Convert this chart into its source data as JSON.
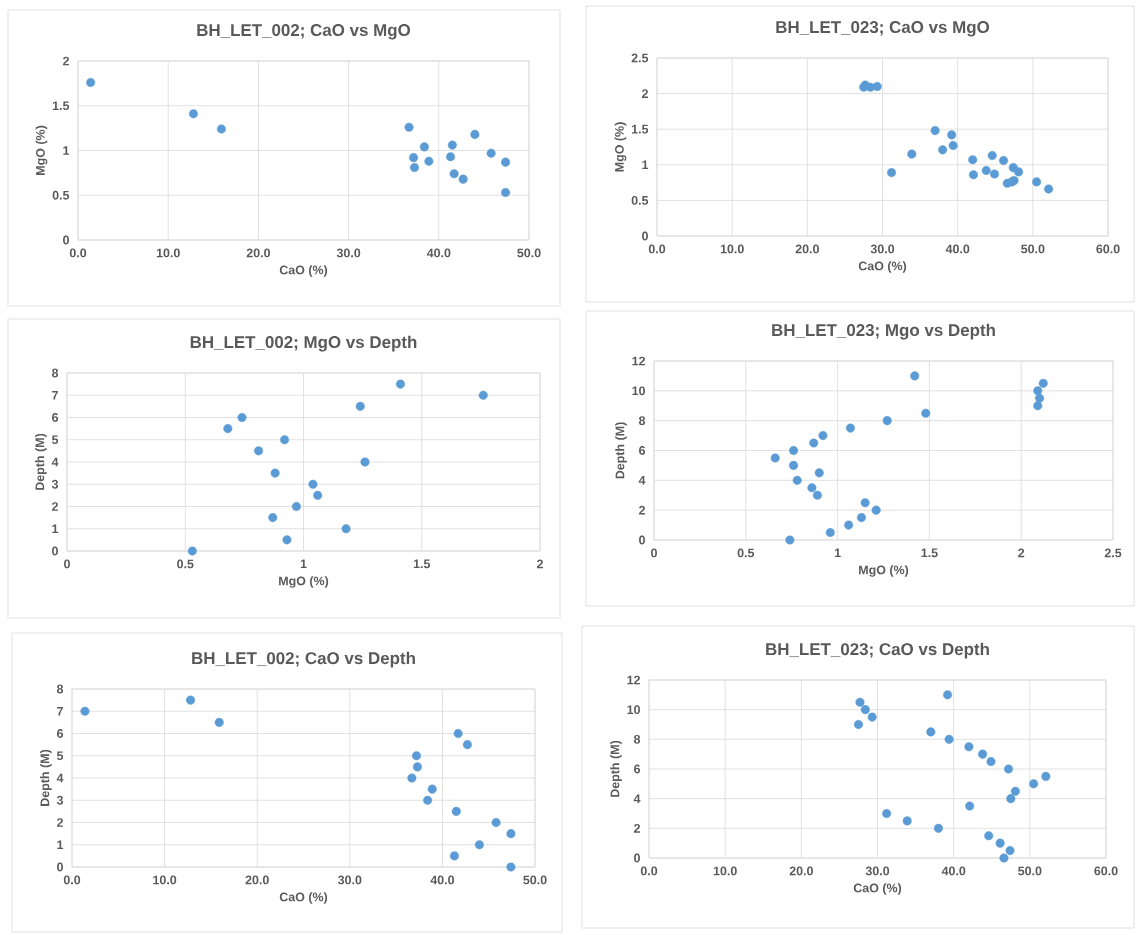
{
  "chart_data": [
    {
      "type": "scatter",
      "title": "BH_LET_002; CaO vs MgO",
      "xlabel": "CaO (%)",
      "ylabel": "MgO (%)",
      "color": "#5b9bd5",
      "marker": "circle",
      "grid": true,
      "x": [
        47.4,
        41.3,
        44.0,
        47.4,
        45.8,
        41.5,
        38.4,
        38.9,
        36.7,
        37.3,
        37.2,
        42.7,
        41.7,
        15.9,
        1.4,
        12.8
      ],
      "values": [
        0.53,
        0.93,
        1.18,
        0.87,
        0.97,
        1.06,
        1.04,
        0.88,
        1.26,
        0.81,
        0.92,
        0.68,
        0.74,
        1.24,
        1.76,
        1.41
      ],
      "xlim": [
        0,
        50
      ],
      "ylim": [
        0,
        2
      ],
      "xticks": [
        {
          "value": 0,
          "label": "0.0"
        },
        {
          "value": 10,
          "label": "10.0"
        },
        {
          "value": 20,
          "label": "20.0"
        },
        {
          "value": 30,
          "label": "30.0"
        },
        {
          "value": 40,
          "label": "40.0"
        },
        {
          "value": 50,
          "label": "50.0"
        }
      ],
      "yticks": [
        0,
        0.5,
        1,
        1.5,
        2
      ]
    },
    {
      "type": "scatter",
      "title": "BH_LET_023; CaO vs MgO",
      "xlabel": "CaO (%)",
      "ylabel": "MgO (%)",
      "color": "#5b9bd5",
      "marker": "circle",
      "grid": true,
      "x": [
        46.6,
        47.4,
        46.1,
        44.6,
        38.0,
        33.9,
        31.2,
        42.1,
        47.5,
        48.1,
        50.5,
        52.1,
        47.2,
        44.9,
        43.8,
        42.0,
        39.4,
        37.0,
        27.5,
        29.3,
        28.4,
        27.7,
        39.2
      ],
      "values": [
        0.74,
        0.96,
        1.06,
        1.13,
        1.21,
        1.15,
        0.89,
        0.86,
        0.78,
        0.9,
        0.76,
        0.66,
        0.76,
        0.87,
        0.92,
        1.07,
        1.27,
        1.48,
        2.09,
        2.1,
        2.09,
        2.12,
        1.42
      ],
      "xlim": [
        0,
        60
      ],
      "ylim": [
        0,
        2.5
      ],
      "xticks": [
        {
          "value": 0,
          "label": "0.0"
        },
        {
          "value": 10,
          "label": "10.0"
        },
        {
          "value": 20,
          "label": "20.0"
        },
        {
          "value": 30,
          "label": "30.0"
        },
        {
          "value": 40,
          "label": "40.0"
        },
        {
          "value": 50,
          "label": "50.0"
        },
        {
          "value": 60,
          "label": "60.0"
        }
      ],
      "yticks": [
        0,
        0.5,
        1,
        1.5,
        2,
        2.5
      ]
    },
    {
      "type": "scatter",
      "title": "BH_LET_002; MgO vs Depth",
      "xlabel": "MgO (%)",
      "ylabel": "Depth (M)",
      "color": "#5b9bd5",
      "marker": "circle",
      "grid": true,
      "x": [
        0.53,
        0.93,
        1.18,
        0.87,
        0.97,
        1.06,
        1.04,
        0.88,
        1.26,
        0.81,
        0.92,
        0.68,
        0.74,
        1.24,
        1.76,
        1.41
      ],
      "values": [
        0,
        0.5,
        1,
        1.5,
        2,
        2.5,
        3,
        3.5,
        4,
        4.5,
        5,
        5.5,
        6,
        6.5,
        7,
        7.5
      ],
      "xlim": [
        0,
        2
      ],
      "ylim": [
        0,
        8
      ],
      "xticks": [
        0,
        0.5,
        1,
        1.5,
        2
      ],
      "yticks": [
        0,
        1,
        2,
        3,
        4,
        5,
        6,
        7,
        8
      ]
    },
    {
      "type": "scatter",
      "title": "BH_LET_023; Mgo vs Depth",
      "xlabel": "MgO (%)",
      "ylabel": "Depth (M)",
      "color": "#5b9bd5",
      "marker": "circle",
      "grid": true,
      "x": [
        0.74,
        0.96,
        1.06,
        1.13,
        1.21,
        1.15,
        0.89,
        0.86,
        0.78,
        0.9,
        0.76,
        0.66,
        0.76,
        0.87,
        0.92,
        1.07,
        1.27,
        1.48,
        2.09,
        2.1,
        2.09,
        2.12,
        1.42
      ],
      "values": [
        0,
        0.5,
        1,
        1.5,
        2,
        2.5,
        3,
        3.5,
        4,
        4.5,
        5,
        5.5,
        6,
        6.5,
        7,
        7.5,
        8,
        8.5,
        9,
        9.5,
        10,
        10.5,
        11
      ],
      "xlim": [
        0,
        2.5
      ],
      "ylim": [
        0,
        12
      ],
      "xticks": [
        0,
        0.5,
        1,
        1.5,
        2,
        2.5
      ],
      "yticks": [
        0,
        2,
        4,
        6,
        8,
        10,
        12
      ]
    },
    {
      "type": "scatter",
      "title": "BH_LET_002; CaO vs Depth",
      "xlabel": "CaO (%)",
      "ylabel": "Depth (M)",
      "color": "#5b9bd5",
      "marker": "circle",
      "grid": true,
      "x": [
        47.4,
        41.3,
        44.0,
        47.4,
        45.8,
        41.5,
        38.4,
        38.9,
        36.7,
        37.3,
        37.2,
        42.7,
        41.7,
        15.9,
        1.4,
        12.8
      ],
      "values": [
        0,
        0.5,
        1,
        1.5,
        2,
        2.5,
        3,
        3.5,
        4,
        4.5,
        5,
        5.5,
        6,
        6.5,
        7,
        7.5
      ],
      "xlim": [
        0,
        50
      ],
      "ylim": [
        0,
        8
      ],
      "xticks": [
        {
          "value": 0,
          "label": "0.0"
        },
        {
          "value": 10,
          "label": "10.0"
        },
        {
          "value": 20,
          "label": "20.0"
        },
        {
          "value": 30,
          "label": "30.0"
        },
        {
          "value": 40,
          "label": "40.0"
        },
        {
          "value": 50,
          "label": "50.0"
        }
      ],
      "yticks": [
        0,
        1,
        2,
        3,
        4,
        5,
        6,
        7,
        8
      ]
    },
    {
      "type": "scatter",
      "title": "BH_LET_023; CaO vs Depth",
      "xlabel": "CaO (%)",
      "ylabel": "Depth (M)",
      "color": "#5b9bd5",
      "marker": "circle",
      "grid": true,
      "x": [
        46.6,
        47.4,
        46.1,
        44.6,
        38.0,
        33.9,
        31.2,
        42.1,
        47.5,
        48.1,
        50.5,
        52.1,
        47.2,
        44.9,
        43.8,
        42.0,
        39.4,
        37.0,
        27.5,
        29.3,
        28.4,
        27.7,
        39.2
      ],
      "values": [
        0,
        0.5,
        1,
        1.5,
        2,
        2.5,
        3,
        3.5,
        4,
        4.5,
        5,
        5.5,
        6,
        6.5,
        7,
        7.5,
        8,
        8.5,
        9,
        9.5,
        10,
        10.5,
        11
      ],
      "xlim": [
        0,
        60
      ],
      "ylim": [
        0,
        12
      ],
      "xticks": [
        {
          "value": 0,
          "label": "0.0"
        },
        {
          "value": 10,
          "label": "10.0"
        },
        {
          "value": 20,
          "label": "20.0"
        },
        {
          "value": 30,
          "label": "30.0"
        },
        {
          "value": 40,
          "label": "40.0"
        },
        {
          "value": 50,
          "label": "50.0"
        },
        {
          "value": 60,
          "label": "60.0"
        }
      ],
      "yticks": [
        0,
        2,
        4,
        6,
        8,
        10,
        12
      ]
    }
  ]
}
